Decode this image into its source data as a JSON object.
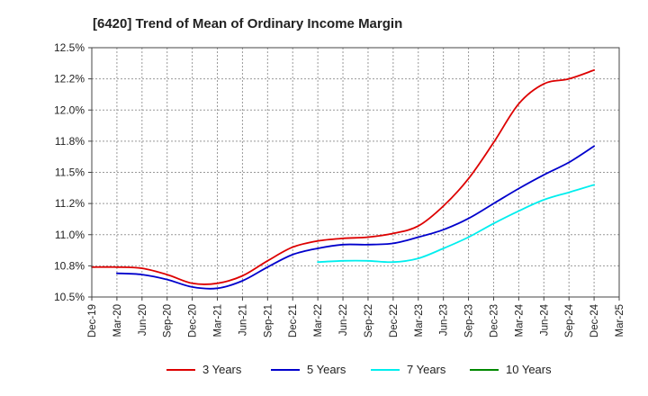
{
  "chart_data": {
    "type": "line",
    "title": "[6420]  Trend of Mean of Ordinary Income Margin",
    "xlabel": "",
    "ylabel": "",
    "x_ticks": [
      "Dec-19",
      "Mar-20",
      "Jun-20",
      "Sep-20",
      "Dec-20",
      "Mar-21",
      "Jun-21",
      "Sep-21",
      "Dec-21",
      "Mar-22",
      "Jun-22",
      "Sep-22",
      "Dec-22",
      "Mar-23",
      "Jun-23",
      "Sep-23",
      "Dec-23",
      "Mar-24",
      "Jun-24",
      "Sep-24",
      "Dec-24",
      "Mar-25"
    ],
    "y_ticks": [
      "10.5%",
      "10.8%",
      "11.0%",
      "11.2%",
      "11.5%",
      "11.8%",
      "12.0%",
      "12.2%",
      "12.5%"
    ],
    "ylim": [
      10.5,
      12.5
    ],
    "grid": true,
    "legend_position": "bottom",
    "series": [
      {
        "name": "3 Years",
        "color": "#dd0000",
        "x": [
          "Dec-19",
          "Mar-20",
          "Jun-20",
          "Sep-20",
          "Dec-20",
          "Mar-21",
          "Jun-21",
          "Sep-21",
          "Dec-21",
          "Mar-22",
          "Jun-22",
          "Sep-22",
          "Dec-22",
          "Mar-23",
          "Jun-23",
          "Sep-23",
          "Dec-23",
          "Mar-24",
          "Jun-24",
          "Sep-24",
          "Dec-24"
        ],
        "values": [
          10.74,
          10.74,
          10.73,
          10.68,
          10.61,
          10.61,
          10.67,
          10.79,
          10.9,
          10.95,
          10.97,
          10.98,
          11.01,
          11.07,
          11.23,
          11.45,
          11.74,
          12.05,
          12.21,
          12.25,
          12.32
        ]
      },
      {
        "name": "5 Years",
        "color": "#0000cc",
        "x": [
          "Mar-20",
          "Jun-20",
          "Sep-20",
          "Dec-20",
          "Mar-21",
          "Jun-21",
          "Sep-21",
          "Dec-21",
          "Mar-22",
          "Jun-22",
          "Sep-22",
          "Dec-22",
          "Mar-23",
          "Jun-23",
          "Sep-23",
          "Dec-23",
          "Mar-24",
          "Jun-24",
          "Sep-24",
          "Dec-24"
        ],
        "values": [
          10.69,
          10.68,
          10.64,
          10.58,
          10.57,
          10.63,
          10.74,
          10.84,
          10.89,
          10.92,
          10.92,
          10.93,
          10.98,
          11.04,
          11.13,
          11.25,
          11.37,
          11.48,
          11.58,
          11.71
        ]
      },
      {
        "name": "7 Years",
        "color": "#00eeee",
        "x": [
          "Mar-22",
          "Jun-22",
          "Sep-22",
          "Dec-22",
          "Mar-23",
          "Jun-23",
          "Sep-23",
          "Dec-23",
          "Mar-24",
          "Jun-24",
          "Sep-24",
          "Dec-24"
        ],
        "values": [
          10.78,
          10.79,
          10.79,
          10.78,
          10.81,
          10.89,
          10.98,
          11.09,
          11.19,
          11.28,
          11.34,
          11.4
        ]
      },
      {
        "name": "10 Years",
        "color": "#008800",
        "x": [],
        "values": []
      }
    ]
  }
}
